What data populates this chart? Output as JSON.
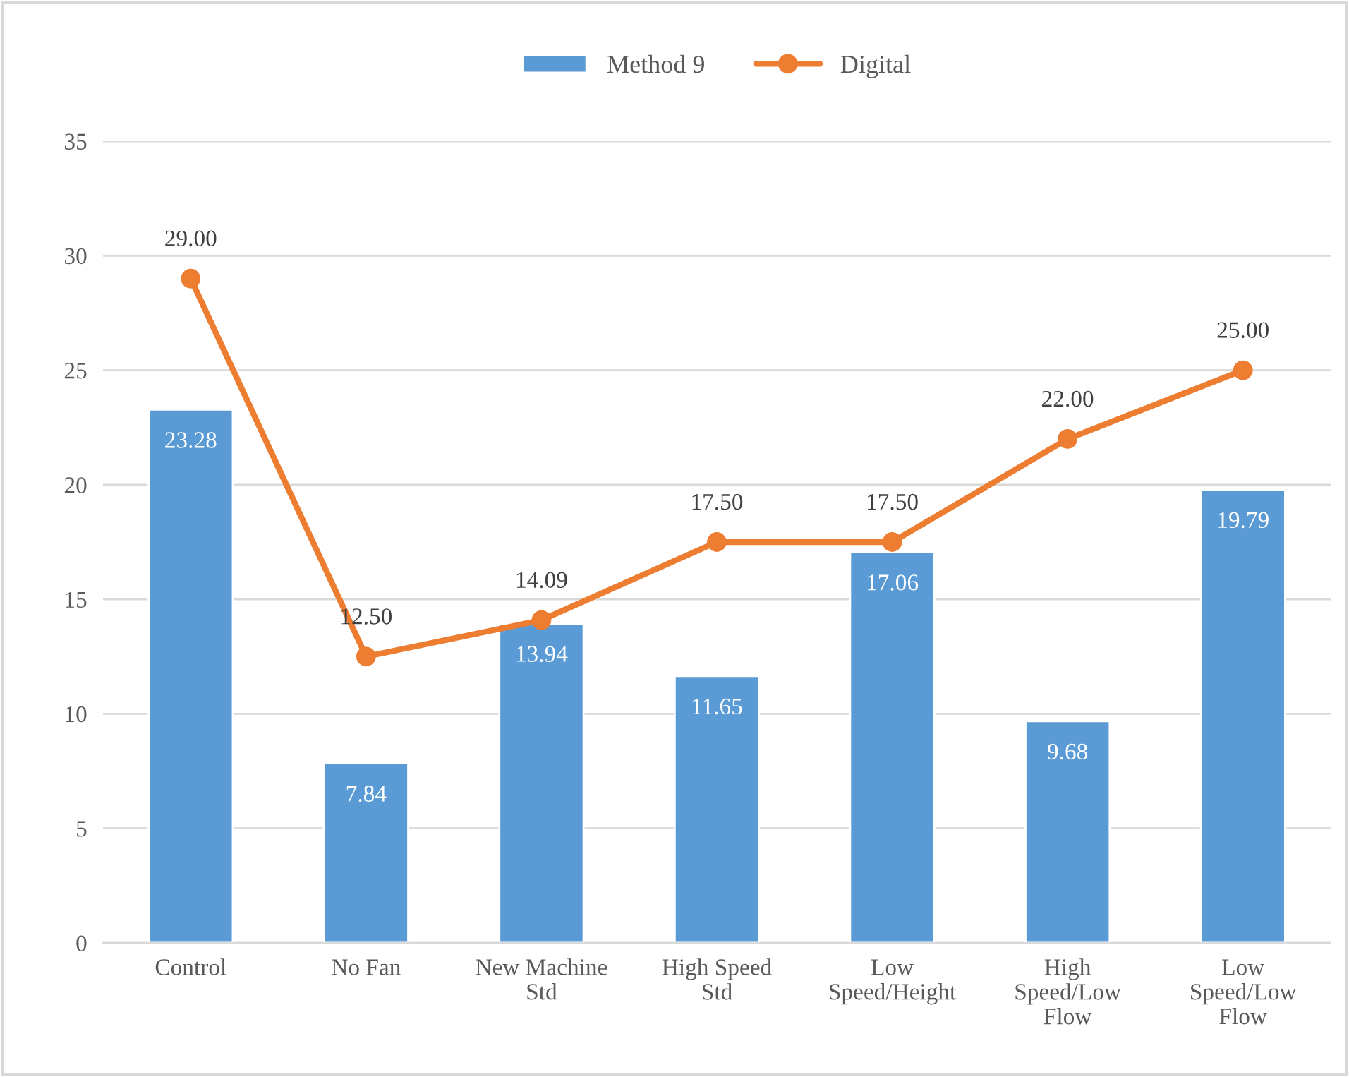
{
  "chart_data": {
    "type": "bar",
    "categories": [
      "Control",
      "No Fan",
      "New Machine Std",
      "High Speed Std",
      "Low Speed/Height",
      "High Speed/Low Flow",
      "Low Speed/Low Flow"
    ],
    "series": [
      {
        "name": "Method 9",
        "color": "#5b9bd5",
        "values": [
          23.28,
          7.84,
          13.94,
          11.65,
          17.06,
          9.68,
          19.79
        ],
        "value_labels": [
          "23.28",
          "7.84",
          "13.94",
          "11.65",
          "17.06",
          "9.68",
          "19.79"
        ]
      },
      {
        "name": "Digital",
        "type": "line",
        "color": "#ed7d31",
        "values": [
          29.0,
          12.5,
          14.09,
          17.5,
          17.5,
          22.0,
          25.0
        ],
        "value_labels": [
          "29.00",
          "12.50",
          "14.09",
          "17.50",
          "17.50",
          "22.00",
          "25.00"
        ]
      }
    ],
    "ylim": [
      0,
      35
    ],
    "yticks": [
      0,
      5,
      10,
      15,
      20,
      25,
      30,
      35
    ],
    "grid": "y",
    "legend": "top",
    "marker": "circle",
    "line_style": "solid"
  }
}
